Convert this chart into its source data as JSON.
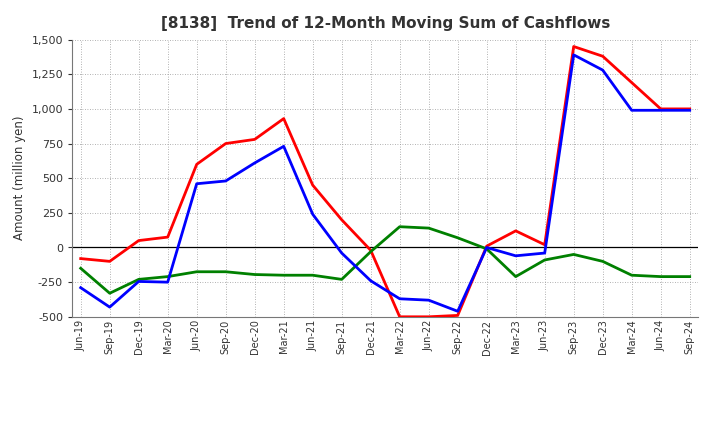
{
  "title": "[8138]  Trend of 12-Month Moving Sum of Cashflows",
  "ylabel": "Amount (million yen)",
  "ylim": [
    -500,
    1500
  ],
  "yticks": [
    -500,
    -250,
    0,
    250,
    500,
    750,
    1000,
    1250,
    1500
  ],
  "x_labels": [
    "Jun-19",
    "Sep-19",
    "Dec-19",
    "Mar-20",
    "Jun-20",
    "Sep-20",
    "Dec-20",
    "Mar-21",
    "Jun-21",
    "Sep-21",
    "Dec-21",
    "Mar-22",
    "Jun-22",
    "Sep-22",
    "Dec-22",
    "Mar-23",
    "Jun-23",
    "Sep-23",
    "Dec-23",
    "Mar-24",
    "Jun-24",
    "Sep-24"
  ],
  "operating": [
    -80,
    -100,
    50,
    75,
    600,
    750,
    780,
    930,
    450,
    200,
    -20,
    -500,
    -500,
    -490,
    10,
    120,
    20,
    1450,
    1380,
    1190,
    1000,
    1000
  ],
  "investing": [
    -150,
    -330,
    -230,
    -210,
    -175,
    -175,
    -195,
    -200,
    -200,
    -230,
    -30,
    150,
    140,
    70,
    -10,
    -210,
    -90,
    -50,
    -100,
    -200,
    -210,
    -210
  ],
  "free": [
    -290,
    -430,
    -245,
    -250,
    460,
    480,
    610,
    730,
    240,
    -40,
    -240,
    -370,
    -380,
    -460,
    0,
    -60,
    -40,
    1390,
    1280,
    990,
    990,
    990
  ],
  "operating_color": "#FF0000",
  "investing_color": "#008000",
  "free_color": "#0000FF",
  "line_width": 2.0,
  "background_color": "#FFFFFF",
  "grid_color": "#999999",
  "title_color": "#333333",
  "title_fontsize": 11,
  "legend_fontsize": 9
}
